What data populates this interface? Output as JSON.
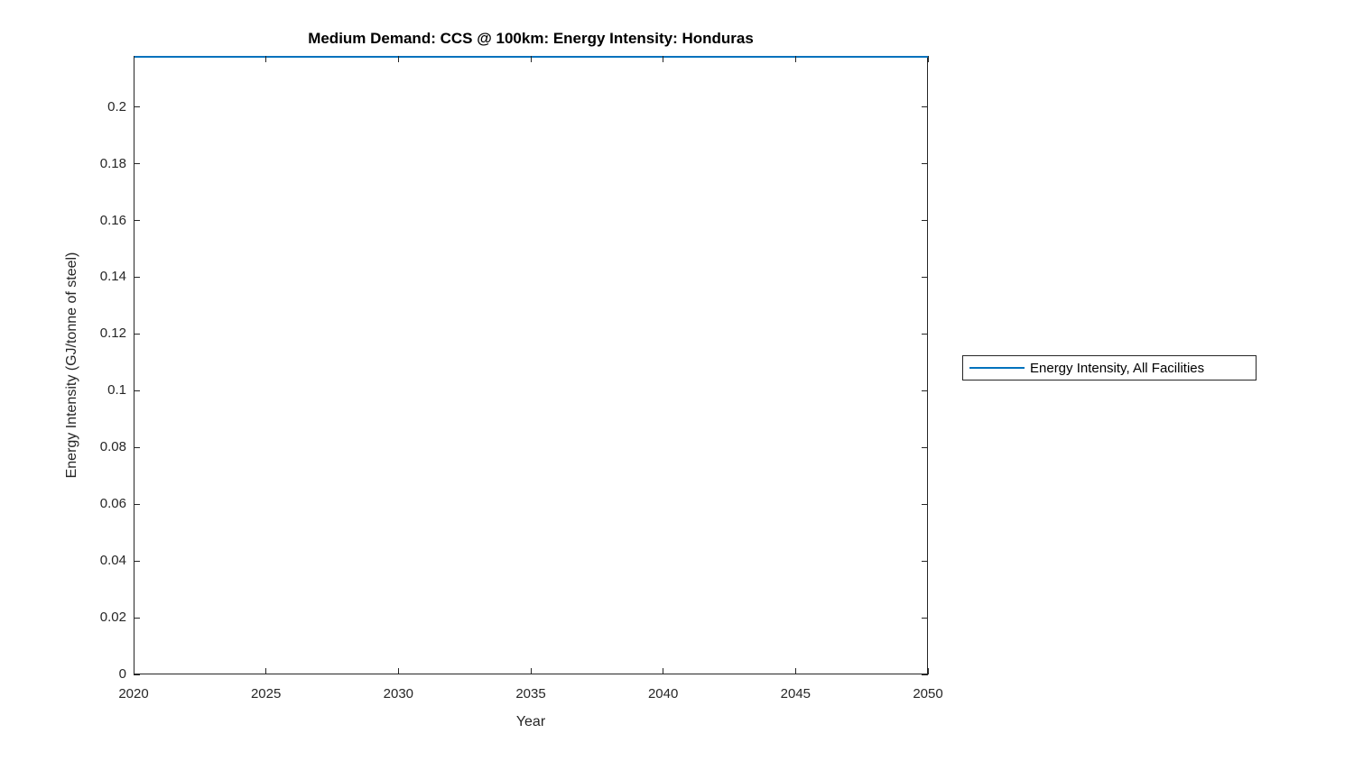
{
  "chart_data": {
    "type": "line",
    "title": "Medium Demand: CCS @ 100km: Energy Intensity: Honduras",
    "xlabel": "Year",
    "ylabel": "Energy Intensity (GJ/tonne of steel)",
    "xlim": [
      2020,
      2050
    ],
    "ylim": [
      0,
      0.218
    ],
    "grid": false,
    "box": true,
    "x_ticks": [
      {
        "value": 2020,
        "label": "2020"
      },
      {
        "value": 2025,
        "label": "2025"
      },
      {
        "value": 2030,
        "label": "2030"
      },
      {
        "value": 2035,
        "label": "2035"
      },
      {
        "value": 2040,
        "label": "2040"
      },
      {
        "value": 2045,
        "label": "2045"
      },
      {
        "value": 2050,
        "label": "2050"
      }
    ],
    "y_ticks": [
      {
        "value": 0,
        "label": "0"
      },
      {
        "value": 0.02,
        "label": "0.02"
      },
      {
        "value": 0.04,
        "label": "0.04"
      },
      {
        "value": 0.06,
        "label": "0.06"
      },
      {
        "value": 0.08,
        "label": "0.08"
      },
      {
        "value": 0.1,
        "label": "0.1"
      },
      {
        "value": 0.12,
        "label": "0.12"
      },
      {
        "value": 0.14,
        "label": "0.14"
      },
      {
        "value": 0.16,
        "label": "0.16"
      },
      {
        "value": 0.18,
        "label": "0.18"
      },
      {
        "value": 0.2,
        "label": "0.2"
      }
    ],
    "series": [
      {
        "name": "Energy Intensity, All Facilities",
        "color": "#0072BD",
        "x": [
          2020,
          2025,
          2030,
          2035,
          2040,
          2045,
          2050
        ],
        "values": [
          0.218,
          0.218,
          0.218,
          0.218,
          0.218,
          0.218,
          0.218
        ]
      }
    ],
    "legend": {
      "position": "right-outside",
      "border": true,
      "entries": [
        {
          "label": "Energy Intensity, All Facilities",
          "color": "#0072BD"
        }
      ]
    },
    "colors": {
      "axis": "#262626",
      "tick_label": "#262626",
      "title": "#000000",
      "line": "#0072BD",
      "background": "#ffffff"
    }
  }
}
